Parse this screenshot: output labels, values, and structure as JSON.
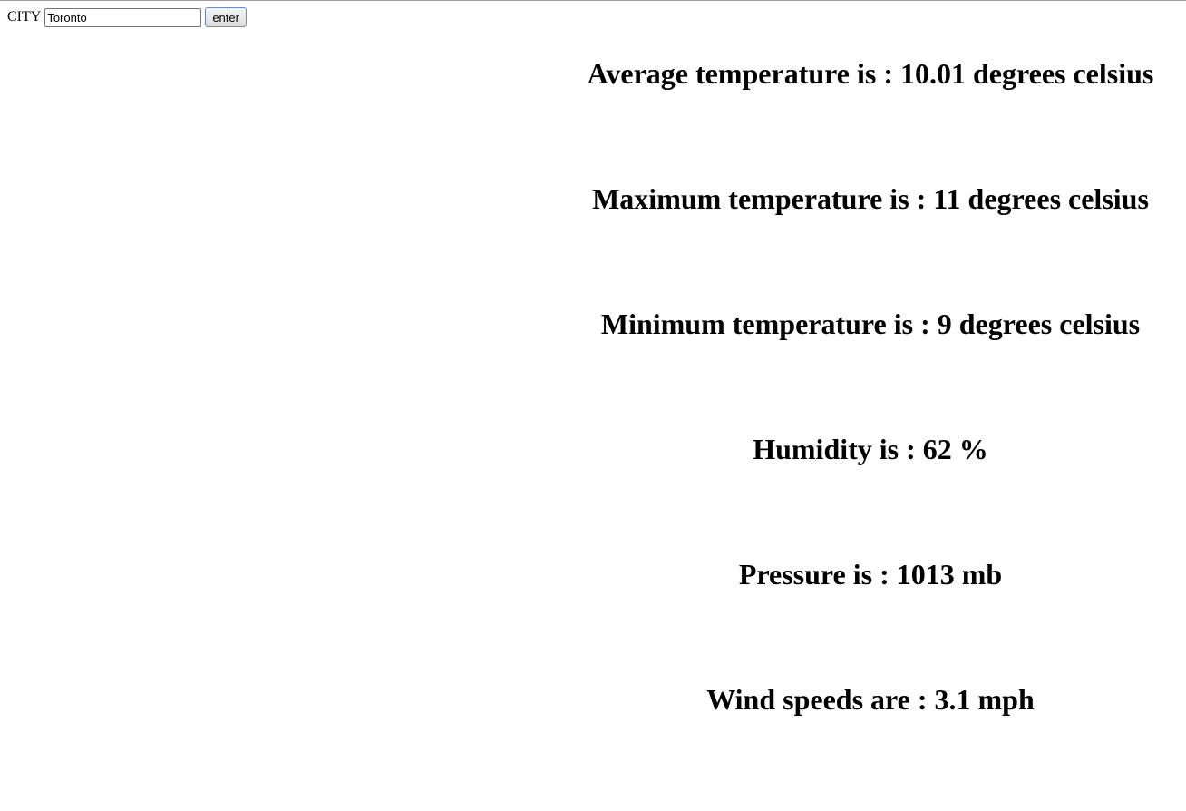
{
  "form": {
    "city_label": "CITY",
    "city_value": "Toronto",
    "enter_label": "enter"
  },
  "readings": {
    "average": "Average temperature is : 10.01 degrees celsius",
    "maximum": "Maximum temperature is : 11 degrees celsius",
    "minimum": "Minimum temperature is : 9 degrees celsius",
    "humidity": "Humidity is : 62 %",
    "pressure": "Pressure is : 1013 mb",
    "wind": "Wind speeds are : 3.1 mph"
  }
}
